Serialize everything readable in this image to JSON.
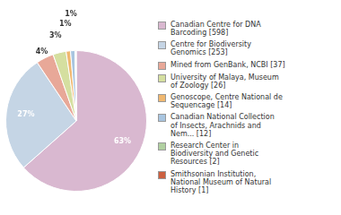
{
  "chart_data": {
    "type": "pie",
    "categories": [
      "Canadian Centre for DNA\nBarcoding [598]",
      "Centre for Biodiversity\nGenomics [253]",
      "Mined from GenBank, NCBI [37]",
      "University of Malaya, Museum\nof Zoology [26]",
      "Genoscope, Centre National de\nSequencage [14]",
      "Canadian National Collection\nof Insects, Arachnids and\nNem... [12]",
      "Research Center in\nBiodiversity and Genetic\nResources [2]",
      "Smithsonian Institution,\nNational Museum of Natural\nHistory [1]"
    ],
    "values": [
      63,
      27,
      4,
      3,
      1,
      1,
      0.2,
      0.1
    ],
    "value_labels": [
      "63%",
      "27%",
      "4%",
      "3%",
      "1%",
      "1%",
      null,
      null
    ],
    "colors": [
      "#d9b8d0",
      "#c5d5e5",
      "#e8a898",
      "#d5dfa0",
      "#f0b870",
      "#a8c5e0",
      "#b0d0a0",
      "#cc6040"
    ],
    "data_labels": true,
    "legend": "right"
  }
}
